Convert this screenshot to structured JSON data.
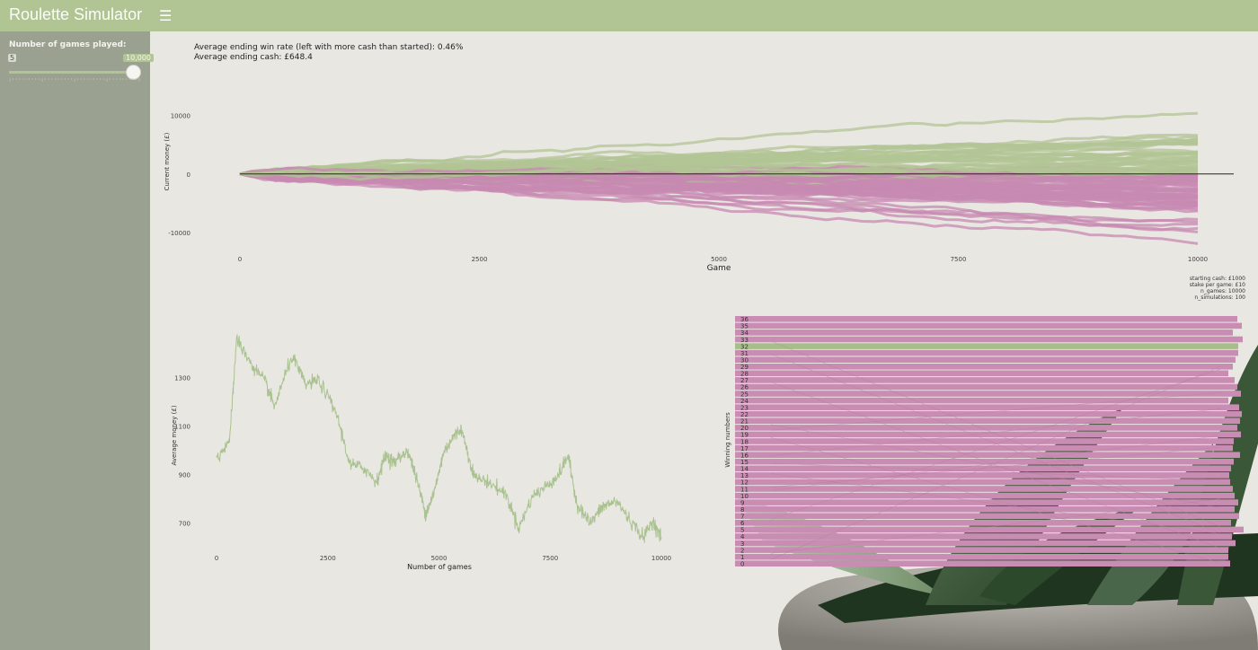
{
  "header": {
    "title": "Roulette Simulator",
    "menu_icon": "hamburger-icon",
    "color": "#b1c494"
  },
  "sidebar": {
    "slider_label": "Number of games played:",
    "slider_min": "5",
    "slider_max": "10,000",
    "slider_value": 10000,
    "slider_fraction": 1.0,
    "color": "#9ba191"
  },
  "stats": {
    "win_rate": "Average ending win rate (left with more cash than started): 0.46%",
    "ending_cash": "Average ending cash: £648.4"
  },
  "params": {
    "starting_cash": "starting cash: £1000",
    "stake": "stake per game: £10",
    "n_games": "n_games: 10000",
    "n_simulations": "n_simulations: 100"
  },
  "chart_data": [
    {
      "type": "line",
      "xlabel": "Game",
      "ylabel": "Current money (£)",
      "xlim": [
        0,
        10000
      ],
      "ylim": [
        -14000,
        19000
      ],
      "x_ticks": [
        "0",
        "2500",
        "5000",
        "7500",
        "10000"
      ],
      "y_ticks": [
        "10000",
        "0",
        "-10000"
      ],
      "series_count": 100,
      "colors": {
        "above": "#b1c494",
        "below": "#c78ab2"
      },
      "reference_line": 0
    },
    {
      "type": "line",
      "xlabel": "Number of games",
      "ylabel": "Average money (£)",
      "xlim": [
        0,
        10000
      ],
      "ylim": [
        580,
        1580
      ],
      "x_ticks": [
        "0",
        "2500",
        "5000",
        "7500",
        "10000"
      ],
      "y_ticks": [
        "1300",
        "1100",
        "900",
        "700"
      ],
      "x": [
        0,
        300,
        450,
        800,
        1100,
        1300,
        1700,
        2000,
        2300,
        2700,
        3000,
        3300,
        3600,
        3800,
        4000,
        4300,
        4500,
        4700,
        4900,
        5100,
        5300,
        5500,
        5800,
        6100,
        6500,
        6800,
        7100,
        7400,
        7700,
        7900,
        8100,
        8400,
        8700,
        9000,
        9300,
        9600,
        9800,
        10000
      ],
      "values": [
        960,
        1050,
        1460,
        1350,
        1280,
        1180,
        1390,
        1270,
        1290,
        1150,
        940,
        930,
        870,
        980,
        950,
        1000,
        880,
        740,
        830,
        990,
        1050,
        1090,
        890,
        870,
        820,
        680,
        810,
        850,
        900,
        980,
        780,
        700,
        770,
        790,
        710,
        640,
        710,
        640
      ],
      "color": "#a9c28f"
    },
    {
      "type": "bar",
      "ylabel": "Winning numbers",
      "categories": [
        "0",
        "1",
        "2",
        "3",
        "4",
        "5",
        "6",
        "7",
        "8",
        "9",
        "10",
        "11",
        "12",
        "13",
        "14",
        "15",
        "16",
        "17",
        "18",
        "19",
        "20",
        "21",
        "22",
        "23",
        "24",
        "25",
        "26",
        "27",
        "28",
        "29",
        "30",
        "31",
        "32",
        "33",
        "34",
        "35",
        "36"
      ],
      "highlighted": "32",
      "colors": {
        "bar": "#c98db4",
        "highlight": "#a6bf8a"
      }
    }
  ]
}
